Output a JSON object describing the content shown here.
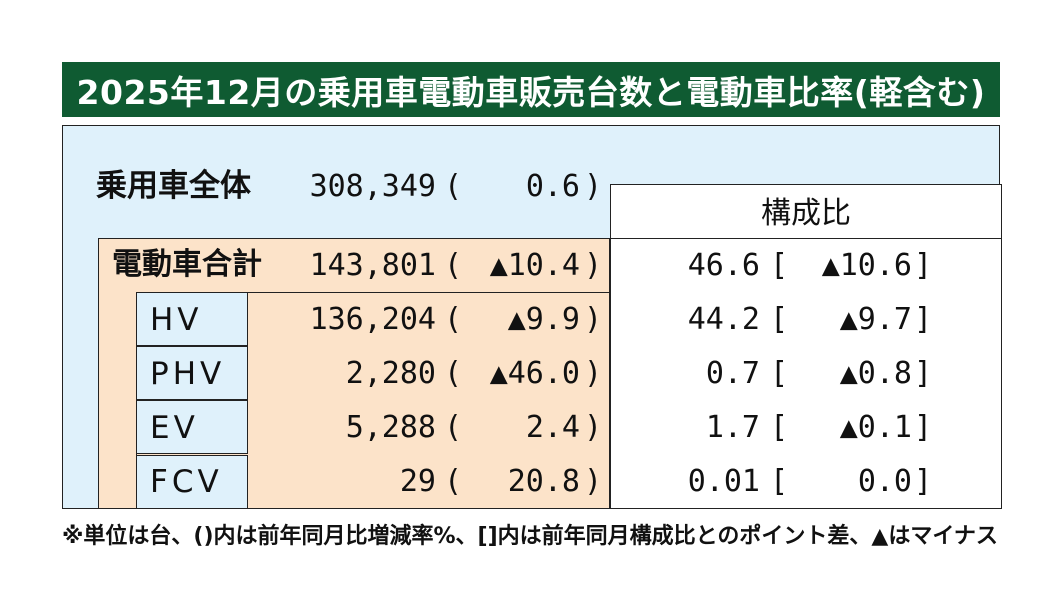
{
  "title": "2025年12月の乗用車電動車販売台数と電動車比率(軽含む)",
  "total": {
    "label": "乗用車全体",
    "units": "308,349",
    "change": "0.6"
  },
  "share_header": "構成比",
  "rows": [
    {
      "label": "電動車合計",
      "units": "143,801",
      "change": "▲10.4",
      "share": "46.6",
      "share_diff": "▲10.6"
    },
    {
      "label": "HV",
      "units": "136,204",
      "change": "▲9.9",
      "share": "44.2",
      "share_diff": "▲9.7"
    },
    {
      "label": "PHV",
      "units": "2,280",
      "change": "▲46.0",
      "share": "0.7",
      "share_diff": "▲0.8"
    },
    {
      "label": "EV",
      "units": "5,288",
      "change": "2.4",
      "share": "1.7",
      "share_diff": "▲0.1"
    },
    {
      "label": "FCV",
      "units": "29",
      "change": "20.8",
      "share": "0.01",
      "share_diff": "0.0"
    }
  ],
  "footnote": "※単位は台、()内は前年同月比増減率%、[]内は前年同月構成比とのポイント差、▲はマイナス",
  "colors": {
    "title_bg": "#0f5b32",
    "panel_bg": "#dff1fb",
    "peach_bg": "#fce3c9"
  }
}
